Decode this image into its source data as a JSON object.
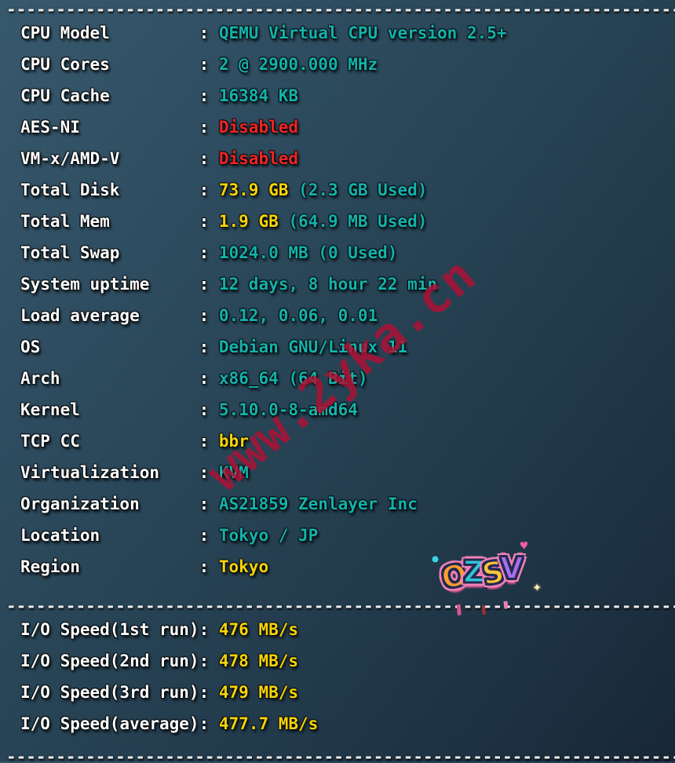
{
  "colors": {
    "teal": "#14b2ac",
    "yellow": "#f7d408",
    "red": "#ee2524",
    "label": "#ffffff",
    "dash": "#ececec",
    "watermark_red": "#b21034",
    "background_top": "#32556a",
    "background_bottom": "#112130"
  },
  "terminal": {
    "separator": "--------------------------------------------------------------------",
    "rows": [
      {
        "label": "CPU Model",
        "parts": [
          {
            "text": "QEMU Virtual CPU version 2.5+",
            "color": "teal"
          }
        ]
      },
      {
        "label": "CPU Cores",
        "parts": [
          {
            "text": "2 @ 2900.000 MHz",
            "color": "teal"
          }
        ]
      },
      {
        "label": "CPU Cache",
        "parts": [
          {
            "text": "16384 KB",
            "color": "teal"
          }
        ]
      },
      {
        "label": "AES-NI",
        "parts": [
          {
            "text": "Disabled",
            "color": "red"
          }
        ]
      },
      {
        "label": "VM-x/AMD-V",
        "parts": [
          {
            "text": "Disabled",
            "color": "red"
          }
        ]
      },
      {
        "label": "Total Disk",
        "parts": [
          {
            "text": "73.9 GB",
            "color": "yellow"
          },
          {
            "text": " (2.3 GB Used)",
            "color": "teal"
          }
        ]
      },
      {
        "label": "Total Mem",
        "parts": [
          {
            "text": "1.9 GB",
            "color": "yellow"
          },
          {
            "text": " (64.9 MB Used)",
            "color": "teal"
          }
        ]
      },
      {
        "label": "Total Swap",
        "parts": [
          {
            "text": "1024.0 MB (0 Used)",
            "color": "teal"
          }
        ]
      },
      {
        "label": "System uptime",
        "parts": [
          {
            "text": "12 days, 8 hour 22 min",
            "color": "teal"
          }
        ]
      },
      {
        "label": "Load average",
        "parts": [
          {
            "text": "0.12, 0.06, 0.01",
            "color": "teal"
          }
        ]
      },
      {
        "label": "OS",
        "parts": [
          {
            "text": "Debian GNU/Linux 11",
            "color": "teal"
          }
        ]
      },
      {
        "label": "Arch",
        "parts": [
          {
            "text": "x86_64 (64 Bit)",
            "color": "teal"
          }
        ]
      },
      {
        "label": "Kernel",
        "parts": [
          {
            "text": "5.10.0-8-amd64",
            "color": "teal"
          }
        ]
      },
      {
        "label": "TCP CC",
        "parts": [
          {
            "text": "bbr",
            "color": "yellow"
          }
        ]
      },
      {
        "label": "Virtualization",
        "parts": [
          {
            "text": "KVM",
            "color": "teal"
          }
        ]
      },
      {
        "label": "Organization",
        "parts": [
          {
            "text": "AS21859 Zenlayer Inc",
            "color": "teal"
          }
        ]
      },
      {
        "label": "Location",
        "parts": [
          {
            "text": "Tokyo / JP",
            "color": "teal"
          }
        ]
      },
      {
        "label": "Region",
        "parts": [
          {
            "text": "Tokyo",
            "color": "yellow"
          }
        ]
      }
    ],
    "io_rows": [
      {
        "label": "I/O Speed(1st run)",
        "parts": [
          {
            "text": "476 MB/s",
            "color": "yellow"
          }
        ]
      },
      {
        "label": "I/O Speed(2nd run)",
        "parts": [
          {
            "text": "478 MB/s",
            "color": "yellow"
          }
        ]
      },
      {
        "label": "I/O Speed(3rd run)",
        "parts": [
          {
            "text": "479 MB/s",
            "color": "yellow"
          }
        ]
      },
      {
        "label": "I/O Speed(average)",
        "parts": [
          {
            "text": "477.7 MB/s",
            "color": "yellow"
          }
        ]
      }
    ]
  },
  "watermark": {
    "text": "www.2yka.cn"
  },
  "sticker": {
    "text": "OZSV",
    "letters": [
      {
        "char": "O",
        "color": "#ff9d2e"
      },
      {
        "char": "Z",
        "color": "#2fc3d8"
      },
      {
        "char": "S",
        "color": "#ffc43a"
      },
      {
        "char": "V",
        "color": "#a86ef0"
      }
    ],
    "decorations": {
      "heart": "♥",
      "sparkle": "✦"
    }
  }
}
